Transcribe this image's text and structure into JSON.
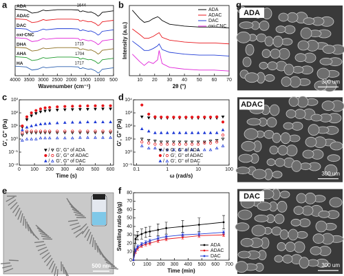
{
  "chart_data": [
    {
      "panel": "a",
      "type": "line",
      "x_label": "Wavenumber (cm⁻¹)",
      "xlim": [
        4000,
        500
      ],
      "ylim": [
        0.6,
        8
      ],
      "xticks": [
        4000,
        3500,
        3000,
        2500,
        2000,
        1500,
        1000,
        500
      ],
      "x": [
        4000,
        3600,
        3400,
        3200,
        3000,
        2900,
        2500,
        2000,
        1750,
        1700,
        1644,
        1600,
        1500,
        1400,
        1300,
        1150,
        1050,
        1000,
        900,
        700,
        500
      ],
      "annotations": [
        "1644",
        "1715",
        "1704",
        "1717"
      ],
      "legend": "trace-labels",
      "series": [
        {
          "name": "ADA",
          "color": "#000000",
          "values": [
            7.6,
            7.52,
            7.2,
            7.28,
            7.52,
            7.44,
            7.56,
            7.56,
            7.52,
            7.36,
            7.36,
            7.44,
            7.36,
            7.28,
            7.32,
            7.12,
            6.88,
            6.96,
            7.28,
            7.36,
            7.44
          ]
        },
        {
          "name": "ADAC",
          "color": "#e8161b",
          "values": [
            6.6,
            6.52,
            6.2,
            6.28,
            6.52,
            6.44,
            6.56,
            6.56,
            6.52,
            6.36,
            6.36,
            6.44,
            6.36,
            6.28,
            6.32,
            6.12,
            5.88,
            5.96,
            6.28,
            6.36,
            6.44
          ]
        },
        {
          "name": "DAC",
          "color": "#1f3bd6",
          "values": [
            5.6,
            5.52,
            5.2,
            5.28,
            5.52,
            5.44,
            5.56,
            5.56,
            5.52,
            5.36,
            5.36,
            5.44,
            5.36,
            5.28,
            5.32,
            5.12,
            4.88,
            4.96,
            5.28,
            5.36,
            5.44
          ]
        },
        {
          "name": "oxi-CNC",
          "color": "#e021d8",
          "values": [
            4.6,
            4.52,
            4.2,
            4.28,
            4.52,
            4.44,
            4.56,
            4.56,
            4.52,
            4.36,
            4.36,
            4.44,
            4.36,
            4.28,
            4.32,
            4.12,
            3.88,
            3.96,
            4.28,
            4.36,
            4.44
          ]
        },
        {
          "name": "DHA",
          "color": "#8a6d1d",
          "values": [
            3.6,
            3.52,
            3.2,
            3.28,
            3.52,
            3.44,
            3.56,
            3.56,
            3.52,
            3.36,
            3.36,
            3.44,
            3.36,
            3.28,
            3.32,
            3.12,
            2.88,
            2.96,
            3.28,
            3.36,
            3.44
          ]
        },
        {
          "name": "AHA",
          "color": "#1b9a2a",
          "values": [
            2.6,
            2.52,
            2.2,
            2.28,
            2.52,
            2.44,
            2.56,
            2.56,
            2.52,
            2.36,
            2.36,
            2.44,
            2.36,
            2.28,
            2.32,
            2.12,
            1.88,
            1.96,
            2.28,
            2.36,
            2.44
          ]
        },
        {
          "name": "HA",
          "color": "#2a5fb0",
          "values": [
            1.6,
            1.52,
            1.2,
            1.28,
            1.52,
            1.44,
            1.56,
            1.56,
            1.52,
            1.36,
            1.36,
            1.44,
            1.36,
            1.28,
            1.32,
            1.12,
            0.88,
            0.96,
            1.28,
            1.36,
            1.44
          ]
        }
      ]
    },
    {
      "panel": "b",
      "type": "line",
      "x_label": "2θ (°)",
      "y_label": "Intensity (a.u.)",
      "xlim": [
        3,
        70
      ],
      "ylim": [
        1.5,
        9
      ],
      "xticks": [
        10,
        20,
        30,
        40,
        50,
        60,
        70
      ],
      "legend": "upper right",
      "x": [
        5,
        10,
        13,
        16,
        19,
        22,
        23,
        25,
        30,
        35,
        40,
        50,
        60,
        70
      ],
      "series": [
        {
          "name": "ADA",
          "color": "#000000",
          "values": [
            8.5,
            7.6,
            7.2,
            7.3,
            7.6,
            7.8,
            7.7,
            7.4,
            7.0,
            6.9,
            6.8,
            6.7,
            6.7,
            6.6
          ]
        },
        {
          "name": "ADAC",
          "color": "#e8161b",
          "values": [
            6.5,
            5.9,
            5.5,
            5.5,
            5.7,
            6.0,
            6.1,
            5.6,
            5.3,
            5.2,
            5.1,
            5.0,
            5.0,
            4.9
          ]
        },
        {
          "name": "DAC",
          "color": "#1f3bd6",
          "values": [
            5.2,
            4.6,
            4.2,
            4.2,
            4.4,
            4.7,
            4.9,
            4.3,
            4.0,
            3.9,
            3.8,
            3.7,
            3.7,
            3.6
          ]
        },
        {
          "name": "oxi-CNC",
          "color": "#e021d8",
          "values": [
            3.8,
            3.0,
            2.6,
            3.0,
            2.8,
            3.2,
            4.2,
            2.8,
            2.4,
            2.3,
            2.2,
            2.1,
            2.1,
            2.0
          ]
        }
      ]
    },
    {
      "panel": "c",
      "type": "scatter",
      "x_label": "Time (s)",
      "y_label": "G', G'' (Pa)",
      "xlim": [
        0,
        620
      ],
      "ylim": [
        0.01,
        1000
      ],
      "ylog": true,
      "legend": "lower right",
      "xticks": [
        0,
        100,
        200,
        300,
        400,
        500,
        600
      ],
      "yticks": [
        {
          "value": 0.01,
          "label": "10⁻²"
        },
        {
          "value": 0.1,
          "label": "10⁻¹"
        },
        {
          "value": 1,
          "label": "10⁰"
        },
        {
          "value": 10,
          "label": "10¹"
        },
        {
          "value": 100,
          "label": "10²"
        },
        {
          "value": 1000,
          "label": "10³"
        }
      ],
      "legend_separator": "/",
      "x": [
        20,
        50,
        80,
        110,
        140,
        170,
        200,
        250,
        300,
        350,
        400,
        450,
        500,
        550,
        600
      ],
      "series": [
        {
          "name": "G', G'' of ADA",
          "color": "#000000",
          "marker": "triangle-down",
          "values": [
            8,
            30,
            60,
            90,
            120,
            140,
            150,
            165,
            175,
            180,
            185,
            190,
            195,
            200,
            200
          ],
          "loss_values": [
            2,
            3,
            3,
            3,
            3,
            3,
            3,
            3,
            3,
            3,
            3,
            3,
            3,
            3,
            3
          ]
        },
        {
          "name": "G', G'' of ADAC",
          "color": "#e8161b",
          "marker": "circle",
          "values": [
            10,
            50,
            100,
            150,
            200,
            240,
            260,
            290,
            310,
            320,
            330,
            340,
            345,
            350,
            350
          ],
          "loss_values": [
            3,
            4,
            4,
            4,
            4,
            4,
            4,
            4,
            4,
            4,
            4,
            4,
            4,
            4,
            4
          ]
        },
        {
          "name": "G', G'' of DAC",
          "color": "#1f3bd6",
          "marker": "triangle-up",
          "values": [
            5,
            8,
            10,
            12,
            14,
            15,
            16,
            17,
            18,
            19,
            19,
            20,
            20,
            20,
            20
          ],
          "loss_values": [
            0.8,
            1,
            1,
            1,
            1.2,
            1.2,
            1.2,
            1.2,
            1.2,
            1.2,
            1.3,
            1.3,
            1.3,
            1.3,
            1.3
          ]
        }
      ]
    },
    {
      "panel": "d",
      "type": "scatter",
      "x_label": "ω (rad/s)",
      "y_label": "G', G'' (Pa)",
      "xlim": [
        0.08,
        100
      ],
      "xlog": true,
      "ylim": [
        0.1,
        10000
      ],
      "ylog": true,
      "legend": "lower right",
      "xticks": [
        0.1,
        1,
        10,
        100
      ],
      "yticks": [
        {
          "value": 0.1,
          "label": "10⁻¹"
        },
        {
          "value": 1,
          "label": "10⁰"
        },
        {
          "value": 10,
          "label": "10¹"
        },
        {
          "value": 100,
          "label": "10²"
        },
        {
          "value": 1000,
          "label": "10³"
        },
        {
          "value": 10000,
          "label": "10⁴"
        }
      ],
      "legend_separator": "/",
      "x": [
        0.15,
        0.25,
        0.4,
        0.63,
        1,
        1.6,
        2.5,
        4,
        6.3,
        10,
        16,
        25,
        40,
        63
      ],
      "series": [
        {
          "name": "G', G'' of ADA",
          "color": "#000000",
          "marker": "triangle-down",
          "values": [
            500,
            420,
            400,
            400,
            400,
            400,
            400,
            400,
            400,
            400,
            400,
            400,
            400,
            500
          ],
          "loss_values": [
            10,
            8,
            7,
            6,
            6,
            6,
            6,
            6,
            6,
            6,
            6,
            7,
            8,
            10
          ]
        },
        {
          "name": "G', G'' of ADAC",
          "color": "#e8161b",
          "marker": "circle",
          "values": [
            4000,
            800,
            500,
            480,
            470,
            470,
            470,
            470,
            470,
            480,
            480,
            480,
            500,
            200
          ],
          "loss_values": [
            6,
            5,
            4,
            4,
            4,
            4,
            4,
            4,
            4,
            4,
            5,
            5,
            6,
            20
          ]
        },
        {
          "name": "G', G'' of DAC",
          "color": "#1f3bd6",
          "marker": "triangle-up",
          "values": [
            60,
            40,
            30,
            30,
            30,
            30,
            30,
            30,
            30,
            30,
            30,
            30,
            30,
            50
          ],
          "loss_values": [
            3,
            2,
            2,
            1.5,
            1.5,
            1.5,
            1.5,
            1.5,
            1.5,
            1.5,
            1.5,
            1.5,
            2,
            3
          ]
        }
      ]
    },
    {
      "panel": "e",
      "type": "image",
      "scale_bar": "500 nm"
    },
    {
      "panel": "f",
      "type": "line",
      "markers": true,
      "x_label": "Time (min)",
      "y_label": "Swelling ratio (g/g)",
      "xlim": [
        0,
        700
      ],
      "ylim": [
        0,
        80
      ],
      "legend": "lower right",
      "xticks": [
        0,
        100,
        200,
        300,
        400,
        500,
        600,
        700
      ],
      "yticks": [
        0,
        10,
        20,
        30,
        40,
        50,
        60,
        70,
        80
      ],
      "x": [
        0,
        15,
        30,
        60,
        90,
        120,
        180,
        240,
        360,
        480,
        660
      ],
      "series": [
        {
          "name": "ADA",
          "color": "#000000",
          "values": [
            0,
            25,
            29,
            31,
            33,
            34,
            36,
            38,
            40,
            42,
            45
          ],
          "errors": [
            0,
            5,
            5,
            6,
            6,
            6,
            7,
            7,
            7,
            8,
            8
          ]
        },
        {
          "name": "ADAC",
          "color": "#e8161b",
          "values": [
            0,
            10,
            14,
            17,
            19,
            20,
            23,
            25,
            27,
            29,
            30
          ],
          "errors": [
            0,
            2,
            2,
            2,
            2,
            2,
            2,
            2,
            2,
            2,
            2
          ]
        },
        {
          "name": "DAC",
          "color": "#1f3bd6",
          "values": [
            0,
            12,
            16,
            19,
            21,
            23,
            26,
            28,
            30,
            31,
            33
          ],
          "errors": [
            0,
            2,
            2,
            2,
            2,
            2,
            2,
            2,
            2,
            2,
            2
          ]
        }
      ]
    },
    {
      "panel": "g",
      "type": "image",
      "captions": [
        "ADA",
        "ADAC",
        "DAC"
      ],
      "scale_bar": "300 um"
    }
  ]
}
